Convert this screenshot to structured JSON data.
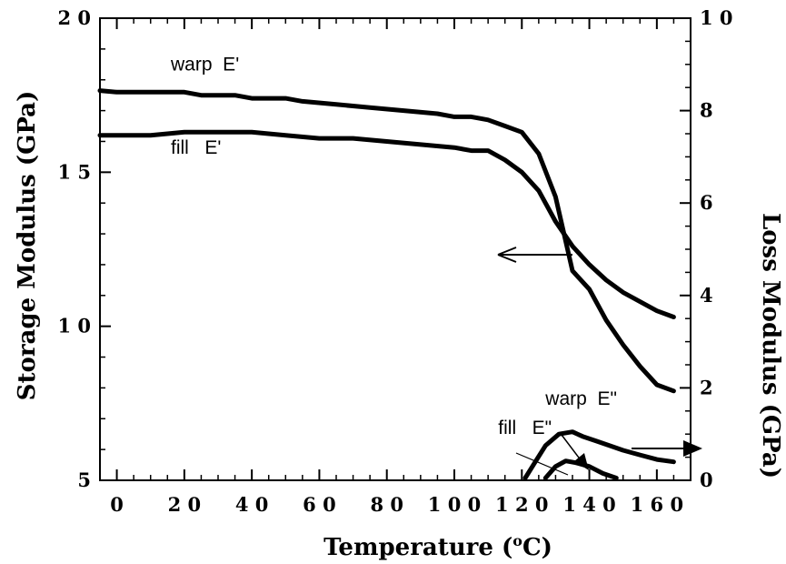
{
  "chart_data": {
    "type": "line",
    "xlabel": "Temperature (°C)",
    "xlabel_parts": {
      "prefix": "Temperature (",
      "sup": "o",
      "suffix": "C)"
    },
    "ylabel_left": "Storage  Modulus  (GPa)",
    "ylabel_right": "Loss  Modulus  (GPa)",
    "xlim": [
      -5,
      170
    ],
    "ylim_left": [
      5,
      20
    ],
    "ylim_right": [
      0,
      10
    ],
    "x_ticks": [
      0,
      20,
      40,
      60,
      80,
      100,
      120,
      140,
      160
    ],
    "x_tick_labels": [
      "0",
      "2 0",
      "4 0",
      "6 0",
      "8 0",
      "1 0 0",
      "1 2 0",
      "1 4 0",
      "1 6 0"
    ],
    "y_left_ticks": [
      5,
      10,
      15,
      20
    ],
    "y_left_tick_labels": [
      "5",
      "1 0",
      "1 5",
      "2 0"
    ],
    "y_right_ticks": [
      0,
      2,
      4,
      6,
      8,
      10
    ],
    "y_right_tick_labels": [
      "0",
      "2",
      "4",
      "6",
      "8",
      "1 0"
    ],
    "grid": false,
    "series": [
      {
        "name": "warp E'",
        "axis": "left",
        "x": [
          -5,
          0,
          10,
          20,
          25,
          35,
          40,
          50,
          55,
          65,
          75,
          85,
          95,
          100,
          105,
          110,
          115,
          120,
          125,
          130,
          135,
          140,
          145,
          150,
          155,
          160,
          165
        ],
        "y": [
          17.65,
          17.6,
          17.6,
          17.6,
          17.5,
          17.5,
          17.4,
          17.4,
          17.3,
          17.2,
          17.1,
          17.0,
          16.9,
          16.8,
          16.8,
          16.7,
          16.5,
          16.3,
          15.6,
          14.2,
          11.8,
          11.2,
          10.2,
          9.4,
          8.7,
          8.1,
          7.9
        ]
      },
      {
        "name": "fill  E'",
        "axis": "left",
        "x": [
          -5,
          0,
          5,
          10,
          20,
          30,
          40,
          50,
          60,
          70,
          80,
          90,
          100,
          105,
          110,
          115,
          120,
          125,
          130,
          135,
          140,
          145,
          150,
          155,
          160,
          165
        ],
        "y": [
          16.2,
          16.2,
          16.2,
          16.2,
          16.3,
          16.3,
          16.3,
          16.2,
          16.1,
          16.1,
          16.0,
          15.9,
          15.8,
          15.7,
          15.7,
          15.4,
          15.0,
          14.4,
          13.4,
          12.6,
          12.0,
          11.5,
          11.1,
          10.8,
          10.5,
          10.3
        ]
      },
      {
        "name": "warp E\"",
        "axis": "right",
        "x": [
          121,
          124,
          127,
          131,
          135,
          138,
          142,
          146,
          150,
          155,
          160,
          165
        ],
        "y": [
          0.05,
          0.4,
          0.75,
          1.0,
          1.05,
          0.95,
          0.85,
          0.75,
          0.65,
          0.55,
          0.45,
          0.4
        ]
      },
      {
        "name": "fill  E\"",
        "axis": "right",
        "x": [
          127,
          130,
          133,
          136,
          140,
          144,
          148
        ],
        "y": [
          0.05,
          0.3,
          0.42,
          0.38,
          0.3,
          0.15,
          0.05
        ]
      }
    ],
    "annotations": [
      {
        "text": "warp  E'",
        "x": 16,
        "y": 18.3
      },
      {
        "text": "fill   E'",
        "x": 16,
        "y": 15.6
      },
      {
        "text": "warp  E\"",
        "x": 127,
        "y": 7.45
      },
      {
        "text": "fill   E\"",
        "x": 113,
        "y": 6.5
      }
    ]
  }
}
